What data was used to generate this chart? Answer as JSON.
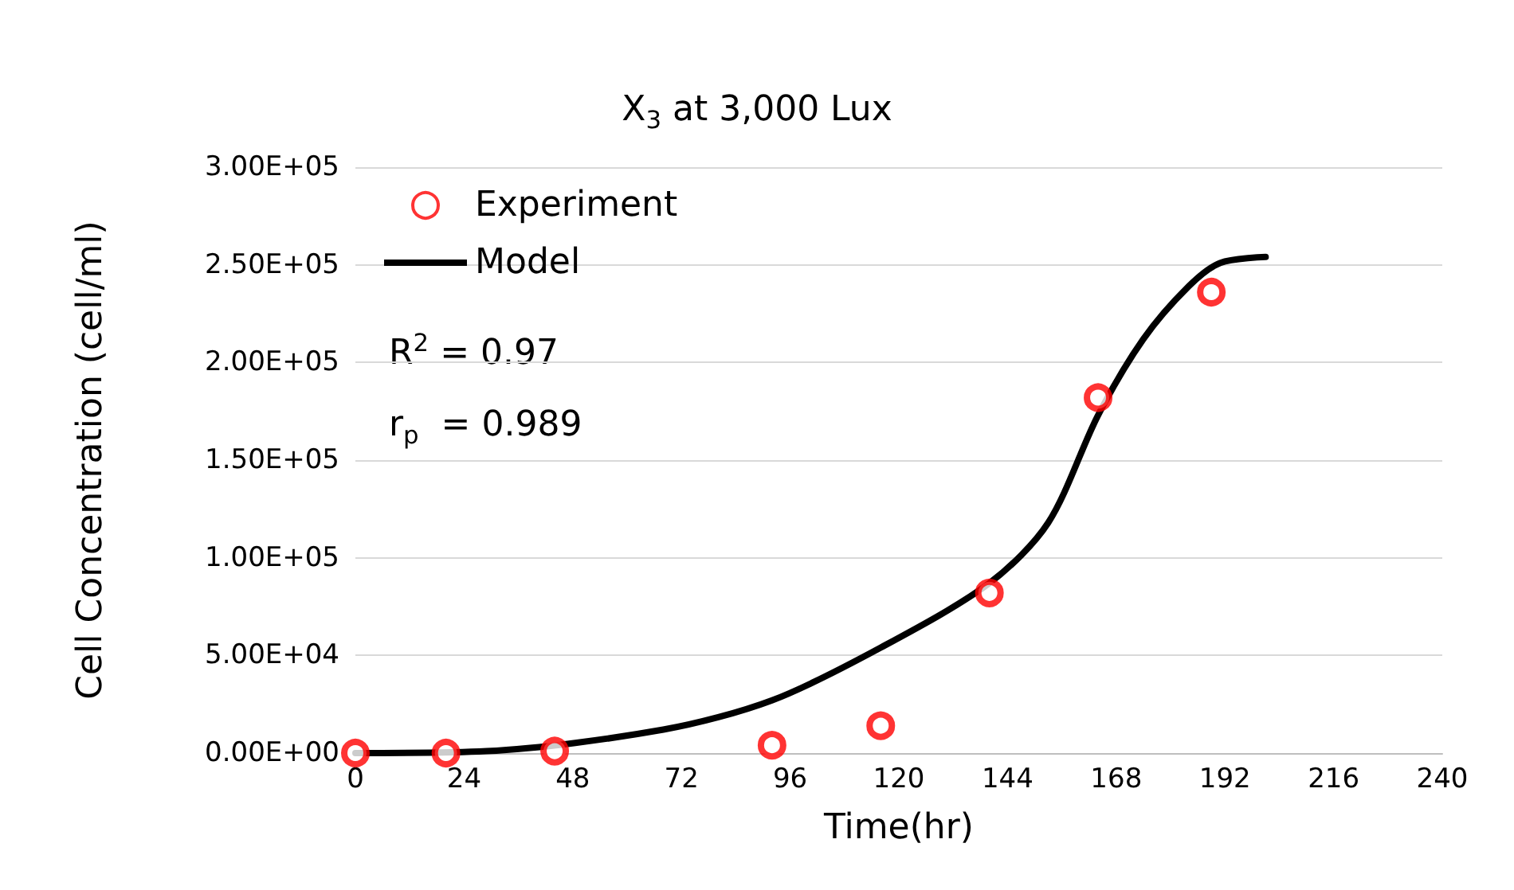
{
  "chart_data": {
    "type": "scatter",
    "title": "X$_{3}$ at 3,000 Lux",
    "xlabel": "Time(hr)",
    "ylabel": "Cell Concentration (cell/ml)",
    "series": [
      {
        "name": "Experiment",
        "type": "scatter",
        "color": "#ff0000",
        "marker": "circle",
        "x": [
          0,
          20,
          44,
          92,
          116,
          140,
          164,
          189
        ],
        "values": [
          0,
          0,
          1000,
          4000,
          14000,
          82000,
          182000,
          236000
        ]
      },
      {
        "name": "Model",
        "type": "line",
        "color": "#000000",
        "marker": "none",
        "line_style": "solid",
        "x": [
          0,
          29,
          68,
          92,
          116,
          140,
          153,
          164,
          174,
          184,
          191,
          201
        ],
        "values": [
          0,
          1000,
          12000,
          27000,
          54000,
          87000,
          118000,
          173000,
          212000,
          239000,
          251000,
          254000
        ]
      }
    ],
    "xlim": [
      0,
      240
    ],
    "xticks": [
      0,
      24,
      48,
      72,
      96,
      120,
      144,
      168,
      192,
      216,
      240
    ],
    "ylim": [
      0,
      300000
    ],
    "yticks": [
      {
        "value": 0,
        "label": "0.00E+00"
      },
      {
        "value": 50000,
        "label": "5.00E+04"
      },
      {
        "value": 100000,
        "label": "1.00E+05"
      },
      {
        "value": 150000,
        "label": "1.50E+05"
      },
      {
        "value": 200000,
        "label": "2.00E+05"
      },
      {
        "value": 250000,
        "label": "2.50E+05"
      },
      {
        "value": 300000,
        "label": "3.00E+05"
      }
    ],
    "grid": "y",
    "legend": "top left",
    "annotations": [
      "R$^{2}$ = 0.97",
      "r$_{p}$  = 0.989"
    ]
  }
}
